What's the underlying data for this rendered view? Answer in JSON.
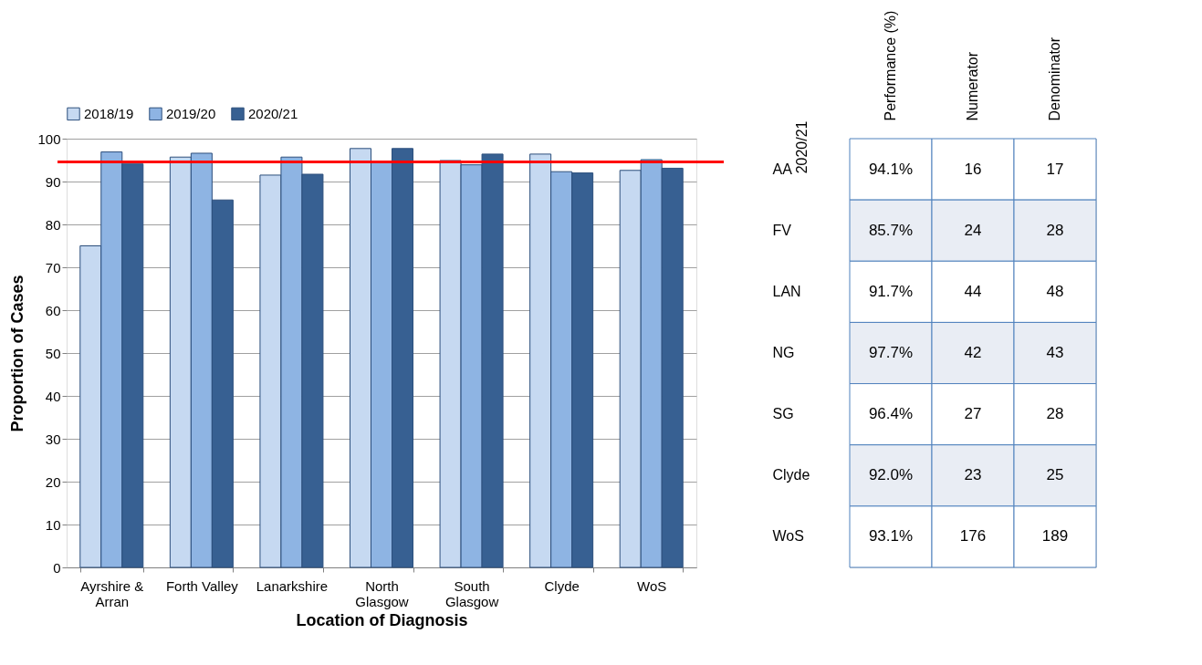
{
  "chart_data": [
    {
      "type": "bar",
      "xlabel": "Location of Diagnosis",
      "ylabel": "Proportion of Cases",
      "categories": [
        "Ayrshire & Arran",
        "Forth Valley",
        "Lanarkshire",
        "North Glasgow",
        "South Glasgow",
        "Clyde",
        "WoS"
      ],
      "series": [
        {
          "name": "2018/19",
          "color": "#c6d9f1",
          "values": [
            75.0,
            95.7,
            91.5,
            97.7,
            94.9,
            96.4,
            92.6
          ]
        },
        {
          "name": "2019/20",
          "color": "#8eb4e3",
          "values": [
            96.9,
            96.6,
            95.7,
            94.6,
            93.9,
            92.3,
            95.1
          ]
        },
        {
          "name": "2020/21",
          "color": "#376092",
          "values": [
            94.1,
            85.7,
            91.7,
            97.7,
            96.4,
            92.0,
            93.1
          ]
        }
      ],
      "ylim": [
        0,
        100
      ],
      "yticks": [
        0,
        10,
        20,
        30,
        40,
        50,
        60,
        70,
        80,
        90,
        100
      ],
      "grid": "y",
      "legend": "top",
      "ref_lines": [
        {
          "axis": "y",
          "value": 94.6,
          "color": "#ff0000"
        }
      ]
    },
    {
      "type": "heatmap",
      "ylabel": "2020/21",
      "categories": [
        "Performance (%)",
        "Numerator",
        "Denominator"
      ],
      "y_categories": [
        "AA",
        "FV",
        "LAN",
        "NG",
        "SG",
        "Clyde",
        "WoS"
      ],
      "cells": [
        [
          94.1,
          16,
          17
        ],
        [
          85.7,
          24,
          28
        ],
        [
          91.7,
          44,
          48
        ],
        [
          97.7,
          42,
          43
        ],
        [
          96.4,
          27,
          28
        ],
        [
          92.0,
          23,
          25
        ],
        [
          93.1,
          176,
          189
        ]
      ],
      "cell_labels": [
        [
          "94.1%",
          "16",
          "17"
        ],
        [
          "85.7%",
          "24",
          "28"
        ],
        [
          "91.7%",
          "44",
          "48"
        ],
        [
          "97.7%",
          "42",
          "43"
        ],
        [
          "96.4%",
          "27",
          "28"
        ],
        [
          "92.0%",
          "23",
          "25"
        ],
        [
          "93.1%",
          "176",
          "189"
        ]
      ]
    }
  ]
}
